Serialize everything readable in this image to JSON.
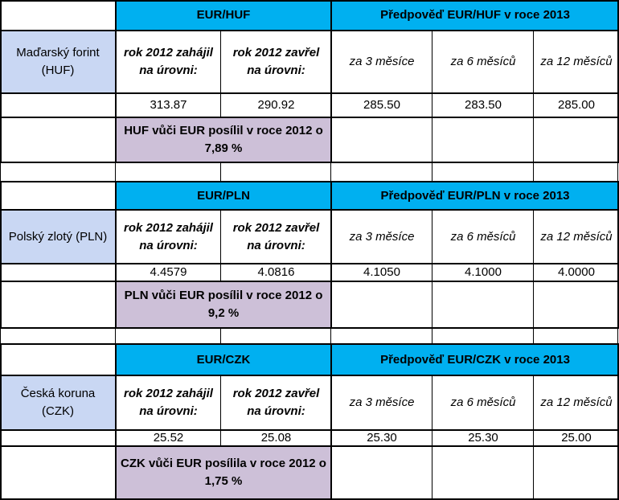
{
  "tables": [
    {
      "pair": "EUR/HUF",
      "forecast_title": "Předpověď EUR/HUF v roce 2013",
      "currency": "Maďarský forint (HUF)",
      "open_label": "rok 2012 zahájil na úrovni:",
      "close_label": "rok 2012 zavřel na úrovni:",
      "horizons": [
        "za 3 měsíce",
        "za 6 měsíců",
        "za 12 měsíců"
      ],
      "open_value": "313.87",
      "close_value": "290.92",
      "forecasts": [
        "285.50",
        "283.50",
        "285.00"
      ],
      "note": "HUF vůči EUR posílil v roce 2012 o 7,89 %"
    },
    {
      "pair": "EUR/PLN",
      "forecast_title": "Předpověď EUR/PLN v roce 2013",
      "currency": "Polský zlotý (PLN)",
      "open_label": "rok 2012 zahájil na úrovni:",
      "close_label": "rok 2012 zavřel na úrovni:",
      "horizons": [
        "za 3 měsíce",
        "za 6 měsíců",
        "za 12 měsíců"
      ],
      "open_value": "4.4579",
      "close_value": "4.0816",
      "forecasts": [
        "4.1050",
        "4.1000",
        "4.0000"
      ],
      "note": "PLN vůči EUR posílil v roce 2012 o 9,2 %"
    },
    {
      "pair": "EUR/CZK",
      "forecast_title": "Předpověď EUR/CZK v roce 2013",
      "currency": "Česká koruna (CZK)",
      "open_label": "rok 2012 zahájil na úrovni:",
      "close_label": "rok 2012 zavřel na úrovni:",
      "horizons": [
        "za 3 měsíce",
        "za 6 měsíců",
        "za 12 měsíců"
      ],
      "open_value": "25.52",
      "close_value": "25.08",
      "forecasts": [
        "25.30",
        "25.30",
        "25.00"
      ],
      "note": "CZK vůči EUR posílila v roce 2012 o 1,75 %"
    }
  ]
}
